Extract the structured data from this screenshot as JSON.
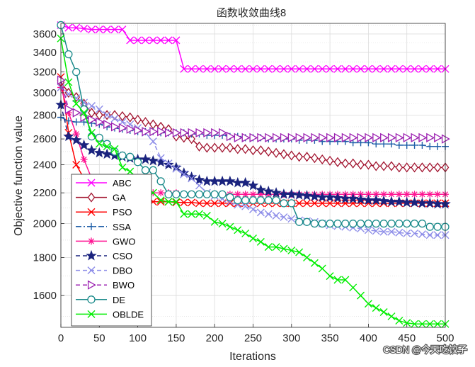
{
  "chart_data": {
    "type": "line",
    "title": "函数收敛曲线8",
    "xlabel": "Iterations",
    "ylabel": "Objective function value",
    "xlim": [
      0,
      500
    ],
    "ylim": [
      1450,
      3720
    ],
    "y_scale": "log",
    "grid": true,
    "legend_position": "lower-left",
    "x_ticks": [
      0,
      50,
      100,
      150,
      200,
      250,
      300,
      350,
      400,
      450,
      500
    ],
    "y_ticks": [
      1600,
      1800,
      2000,
      2200,
      2400,
      2600,
      2800,
      3000,
      3200,
      3400,
      3600
    ],
    "series": [
      {
        "name": "ABC",
        "color": "#ff00ff",
        "line": "solid",
        "marker": "x",
        "x": [
          0,
          10,
          20,
          30,
          40,
          50,
          60,
          70,
          80,
          90,
          100,
          110,
          120,
          130,
          140,
          150,
          160,
          170,
          180,
          190,
          200,
          210,
          220,
          230,
          240,
          250,
          260,
          270,
          280,
          290,
          300,
          310,
          320,
          330,
          340,
          350,
          360,
          370,
          380,
          390,
          400,
          410,
          420,
          430,
          440,
          450,
          460,
          470,
          480,
          490,
          500
        ],
        "values": [
          3700,
          3670,
          3670,
          3660,
          3650,
          3650,
          3650,
          3650,
          3650,
          3530,
          3530,
          3530,
          3530,
          3530,
          3530,
          3530,
          3230,
          3230,
          3230,
          3230,
          3230,
          3230,
          3230,
          3230,
          3230,
          3230,
          3230,
          3230,
          3230,
          3230,
          3230,
          3230,
          3230,
          3230,
          3230,
          3230,
          3230,
          3230,
          3230,
          3230,
          3230,
          3230,
          3230,
          3230,
          3230,
          3230,
          3230,
          3230,
          3230,
          3230,
          3230
        ]
      },
      {
        "name": "GA",
        "color": "#a2142f",
        "line": "solid",
        "marker": "diamond",
        "x": [
          0,
          10,
          20,
          30,
          40,
          50,
          60,
          70,
          80,
          90,
          100,
          110,
          120,
          130,
          140,
          150,
          160,
          170,
          180,
          190,
          200,
          210,
          220,
          230,
          240,
          250,
          260,
          270,
          280,
          290,
          300,
          310,
          320,
          330,
          340,
          350,
          360,
          370,
          380,
          390,
          400,
          410,
          420,
          430,
          440,
          450,
          460,
          470,
          480,
          490,
          500
        ],
        "values": [
          3100,
          3000,
          2960,
          2900,
          2820,
          2800,
          2800,
          2800,
          2790,
          2780,
          2760,
          2740,
          2720,
          2700,
          2680,
          2620,
          2610,
          2600,
          2540,
          2530,
          2530,
          2530,
          2530,
          2520,
          2520,
          2510,
          2510,
          2500,
          2490,
          2480,
          2470,
          2460,
          2460,
          2450,
          2440,
          2430,
          2420,
          2410,
          2410,
          2400,
          2400,
          2390,
          2390,
          2390,
          2380,
          2380,
          2380,
          2380,
          2380,
          2380,
          2380
        ]
      },
      {
        "name": "PSO",
        "color": "#ff0000",
        "line": "solid",
        "marker": "x",
        "x": [
          0,
          10,
          20,
          30,
          40,
          50,
          60,
          70,
          80,
          90,
          100,
          110,
          120,
          130,
          140,
          150,
          160,
          170,
          180,
          190,
          200,
          210,
          220,
          230,
          240,
          250,
          260,
          270,
          280,
          290,
          300,
          310,
          320,
          330,
          340,
          350,
          360,
          370,
          380,
          390,
          400,
          410,
          420,
          430,
          440,
          450,
          460,
          470,
          480,
          490,
          500
        ],
        "values": [
          3150,
          2650,
          2400,
          2300,
          2220,
          2190,
          2180,
          2170,
          2160,
          2150,
          2150,
          2145,
          2140,
          2140,
          2140,
          2135,
          2135,
          2135,
          2130,
          2130,
          2130,
          2130,
          2130,
          2130,
          2130,
          2130,
          2130,
          2130,
          2130,
          2130,
          2130,
          2130,
          2130,
          2130,
          2130,
          2130,
          2130,
          2130,
          2130,
          2130,
          2130,
          2130,
          2130,
          2130,
          2130,
          2130,
          2130,
          2130,
          2130,
          2130,
          2130
        ]
      },
      {
        "name": "SSA",
        "color": "#1f5fa8",
        "line": "dashdot",
        "marker": "plus",
        "x": [
          0,
          10,
          20,
          30,
          40,
          50,
          60,
          70,
          80,
          90,
          100,
          110,
          120,
          130,
          140,
          150,
          160,
          170,
          180,
          190,
          200,
          210,
          220,
          230,
          240,
          250,
          260,
          270,
          280,
          290,
          300,
          310,
          320,
          330,
          340,
          350,
          360,
          370,
          380,
          390,
          400,
          410,
          420,
          430,
          440,
          450,
          460,
          470,
          480,
          490,
          500
        ],
        "values": [
          2780,
          2750,
          2740,
          2740,
          2730,
          2720,
          2700,
          2690,
          2680,
          2670,
          2660,
          2660,
          2660,
          2650,
          2650,
          2650,
          2650,
          2640,
          2640,
          2630,
          2630,
          2630,
          2620,
          2620,
          2610,
          2610,
          2610,
          2600,
          2600,
          2600,
          2600,
          2590,
          2590,
          2590,
          2580,
          2580,
          2580,
          2580,
          2570,
          2570,
          2570,
          2560,
          2560,
          2560,
          2550,
          2550,
          2550,
          2550,
          2540,
          2540,
          2540
        ]
      },
      {
        "name": "GWO",
        "color": "#ff1493",
        "line": "solid",
        "marker": "asterisk",
        "x": [
          0,
          10,
          20,
          30,
          40,
          50,
          60,
          70,
          80,
          90,
          100,
          110,
          120,
          130,
          140,
          150,
          160,
          170,
          180,
          190,
          200,
          210,
          220,
          230,
          240,
          250,
          260,
          270,
          280,
          290,
          300,
          310,
          320,
          330,
          340,
          350,
          360,
          370,
          380,
          390,
          400,
          410,
          420,
          430,
          440,
          450,
          460,
          470,
          480,
          490,
          500
        ],
        "values": [
          3050,
          2820,
          2640,
          2440,
          2300,
          2250,
          2240,
          2230,
          2220,
          2210,
          2200,
          2200,
          2200,
          2200,
          2200,
          2200,
          2190,
          2190,
          2190,
          2190,
          2190,
          2190,
          2190,
          2190,
          2190,
          2190,
          2190,
          2190,
          2190,
          2190,
          2190,
          2190,
          2190,
          2190,
          2190,
          2190,
          2190,
          2190,
          2190,
          2190,
          2190,
          2190,
          2190,
          2190,
          2190,
          2190,
          2190,
          2190,
          2190,
          2190,
          2190
        ]
      },
      {
        "name": "CSO",
        "color": "#1a237e",
        "line": "dashed",
        "marker": "star",
        "x": [
          0,
          10,
          20,
          30,
          40,
          50,
          60,
          70,
          80,
          90,
          100,
          110,
          120,
          130,
          140,
          150,
          160,
          170,
          180,
          190,
          200,
          210,
          220,
          230,
          240,
          250,
          260,
          270,
          280,
          290,
          300,
          310,
          320,
          330,
          340,
          350,
          360,
          370,
          380,
          390,
          400,
          410,
          420,
          430,
          440,
          450,
          460,
          470,
          480,
          490,
          500
        ],
        "values": [
          2890,
          2620,
          2590,
          2550,
          2510,
          2490,
          2480,
          2470,
          2460,
          2450,
          2440,
          2440,
          2430,
          2420,
          2400,
          2380,
          2340,
          2310,
          2290,
          2280,
          2280,
          2280,
          2280,
          2270,
          2270,
          2250,
          2220,
          2210,
          2200,
          2190,
          2190,
          2185,
          2180,
          2175,
          2170,
          2170,
          2165,
          2160,
          2160,
          2155,
          2150,
          2150,
          2145,
          2140,
          2140,
          2135,
          2135,
          2130,
          2130,
          2125,
          2125
        ]
      },
      {
        "name": "DBO",
        "color": "#8c8ce8",
        "line": "dashed",
        "marker": "x",
        "x": [
          0,
          10,
          20,
          30,
          40,
          50,
          60,
          70,
          80,
          90,
          100,
          110,
          120,
          130,
          140,
          150,
          160,
          170,
          180,
          190,
          200,
          210,
          220,
          230,
          240,
          250,
          260,
          270,
          280,
          290,
          300,
          310,
          320,
          330,
          340,
          350,
          360,
          370,
          380,
          390,
          400,
          410,
          420,
          430,
          440,
          450,
          460,
          470,
          480,
          490,
          500
        ],
        "values": [
          3050,
          2990,
          2950,
          2910,
          2880,
          2850,
          2800,
          2770,
          2740,
          2720,
          2690,
          2650,
          2580,
          2450,
          2410,
          2370,
          2330,
          2300,
          2250,
          2200,
          2180,
          2160,
          2140,
          2120,
          2110,
          2090,
          2070,
          2060,
          2050,
          2040,
          2030,
          2020,
          2015,
          2010,
          2000,
          1990,
          1985,
          1980,
          1975,
          1970,
          1960,
          1955,
          1950,
          1950,
          1945,
          1940,
          1940,
          1935,
          1930,
          1930,
          1930
        ]
      },
      {
        "name": "BWO",
        "color": "#9b1fb0",
        "line": "dashed",
        "marker": "triangle-right",
        "x": [
          0,
          10,
          20,
          30,
          40,
          50,
          60,
          70,
          80,
          90,
          100,
          110,
          120,
          130,
          140,
          150,
          160,
          170,
          180,
          190,
          200,
          210,
          220,
          230,
          240,
          250,
          260,
          270,
          280,
          290,
          300,
          310,
          320,
          330,
          340,
          350,
          360,
          370,
          380,
          390,
          400,
          410,
          420,
          430,
          440,
          450,
          460,
          470,
          480,
          490,
          500
        ],
        "values": [
          3120,
          2850,
          2820,
          2780,
          2760,
          2740,
          2720,
          2700,
          2690,
          2680,
          2670,
          2660,
          2660,
          2660,
          2650,
          2650,
          2650,
          2650,
          2650,
          2650,
          2650,
          2650,
          2620,
          2610,
          2610,
          2610,
          2610,
          2610,
          2610,
          2610,
          2610,
          2610,
          2610,
          2610,
          2610,
          2610,
          2610,
          2610,
          2610,
          2610,
          2610,
          2610,
          2610,
          2610,
          2610,
          2610,
          2610,
          2610,
          2610,
          2610,
          2600
        ]
      },
      {
        "name": "DE",
        "color": "#1a8a8a",
        "line": "solid",
        "marker": "circle",
        "x": [
          0,
          10,
          20,
          30,
          40,
          50,
          60,
          70,
          80,
          90,
          100,
          110,
          120,
          130,
          140,
          150,
          160,
          170,
          180,
          190,
          200,
          210,
          220,
          230,
          240,
          250,
          260,
          270,
          280,
          290,
          300,
          310,
          320,
          330,
          340,
          350,
          360,
          370,
          380,
          390,
          400,
          410,
          420,
          430,
          440,
          450,
          460,
          470,
          480,
          490,
          500
        ],
        "values": [
          3700,
          3380,
          3200,
          2850,
          2620,
          2610,
          2560,
          2500,
          2470,
          2460,
          2420,
          2360,
          2360,
          2280,
          2190,
          2190,
          2190,
          2190,
          2190,
          2190,
          2190,
          2190,
          2170,
          2150,
          2150,
          2150,
          2150,
          2150,
          2150,
          2130,
          2130,
          2010,
          2010,
          2000,
          2000,
          2000,
          2000,
          2000,
          2000,
          2000,
          2000,
          2000,
          2000,
          2000,
          2000,
          2000,
          2000,
          2000,
          1980,
          1980,
          1980
        ]
      },
      {
        "name": "OBLDE",
        "color": "#00ee00",
        "line": "solid",
        "marker": "x",
        "x": [
          0,
          10,
          20,
          30,
          40,
          50,
          60,
          70,
          80,
          90,
          100,
          110,
          120,
          130,
          140,
          150,
          160,
          170,
          180,
          190,
          200,
          210,
          220,
          230,
          240,
          250,
          260,
          270,
          280,
          290,
          300,
          310,
          320,
          330,
          340,
          350,
          360,
          370,
          380,
          390,
          400,
          410,
          420,
          430,
          440,
          450,
          460,
          470,
          480,
          490,
          500
        ],
        "values": [
          3550,
          3100,
          2900,
          2820,
          2650,
          2560,
          2540,
          2520,
          2380,
          2350,
          2300,
          2220,
          2200,
          2150,
          2140,
          2140,
          2060,
          2060,
          2060,
          2050,
          2010,
          2000,
          1980,
          1960,
          1940,
          1910,
          1890,
          1860,
          1860,
          1850,
          1840,
          1830,
          1800,
          1770,
          1740,
          1700,
          1680,
          1680,
          1640,
          1600,
          1560,
          1540,
          1520,
          1500,
          1480,
          1470,
          1465,
          1465,
          1465,
          1465,
          1465
        ]
      }
    ]
  },
  "watermark": "CSDN @今天吃饺子"
}
